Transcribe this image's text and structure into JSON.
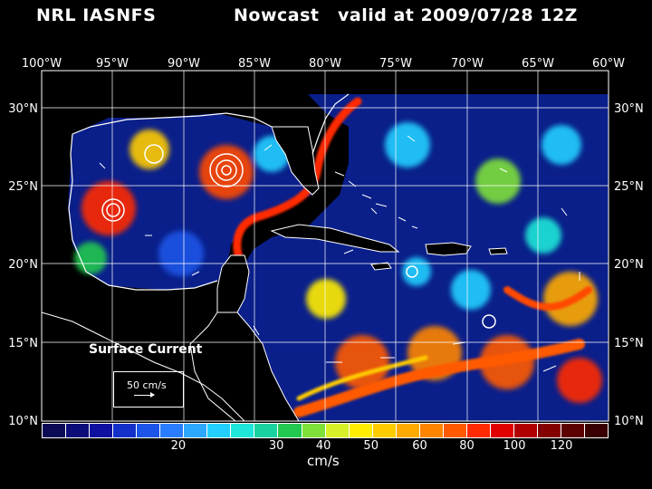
{
  "title": {
    "left": "NRL IASNFS",
    "middle": "Nowcast",
    "right": "valid at 2009/07/28 12Z"
  },
  "axes": {
    "lon_labels": [
      "100°W",
      "95°W",
      "90°W",
      "85°W",
      "80°W",
      "75°W",
      "70°W",
      "65°W",
      "60°W"
    ],
    "lat_labels": [
      "30°N",
      "25°N",
      "20°N",
      "15°N",
      "10°N"
    ]
  },
  "legend": {
    "surface_label": "Surface Current",
    "reference_vector": "50 cm/s",
    "unit": "cm/s",
    "colorbar_labels": [
      "20",
      "30",
      "40",
      "50",
      "60",
      "80",
      "100",
      "120"
    ],
    "colorbar_colors": [
      "#0b0b55",
      "#0d0d7a",
      "#0f10a0",
      "#1330c8",
      "#1b54e6",
      "#2a7dff",
      "#2ea7ff",
      "#22cfff",
      "#1ee6d8",
      "#1ad2a0",
      "#22c850",
      "#7fe03a",
      "#d8f028",
      "#ffee00",
      "#ffcc00",
      "#ffaa00",
      "#ff8400",
      "#ff5a00",
      "#ff2a00",
      "#e00000",
      "#b00000",
      "#850000",
      "#5c0000",
      "#380000"
    ]
  },
  "colors": {
    "land": "#000000",
    "ocean_base": "#0a1f8a",
    "coastline": "#ffffff",
    "grid": "#ffffff"
  }
}
